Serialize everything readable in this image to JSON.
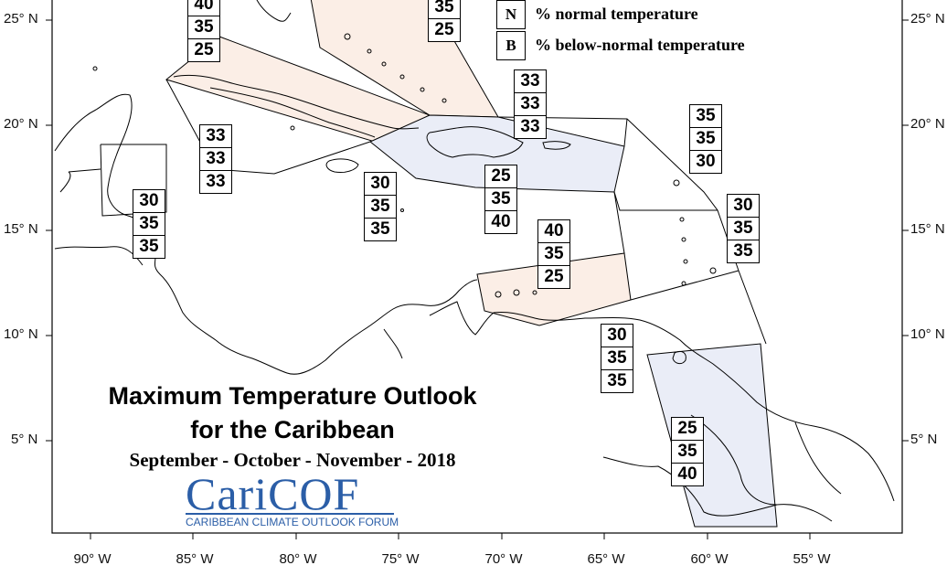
{
  "map": {
    "title_line1": "Maximum Temperature Outlook",
    "title_line2": "for the Caribbean",
    "subtitle": "September - October - November - 2018",
    "logo": {
      "name": "CariCOF",
      "tagline": "CARIBBEAN CLIMATE OUTLOOK FORUM",
      "color": "#2b5ea7"
    },
    "legend": [
      {
        "key": "N",
        "text": "% normal temperature"
      },
      {
        "key": "B",
        "text": "% below-normal temperature"
      }
    ],
    "lat_labels": [
      "25° N",
      "20° N",
      "15° N",
      "10° N",
      "5° N"
    ],
    "lon_labels": [
      "90° W",
      "85° W",
      "80° W",
      "75° W",
      "70° W",
      "65° W",
      "60° W",
      "55° W"
    ],
    "colors": {
      "above_shade": "#fbeee6",
      "below_shade": "#eaedf7",
      "outline": "#000000"
    },
    "regions": [
      {
        "name": "northwest-top",
        "values": [
          "40",
          "35",
          "25"
        ]
      },
      {
        "name": "bahamas",
        "values": [
          "35",
          "25"
        ]
      },
      {
        "name": "turks-caicos",
        "values": [
          "33",
          "33",
          "33"
        ]
      },
      {
        "name": "west-caribbean",
        "values": [
          "33",
          "33",
          "33"
        ]
      },
      {
        "name": "belize",
        "values": [
          "30",
          "35",
          "35"
        ]
      },
      {
        "name": "jamaica",
        "values": [
          "30",
          "35",
          "35"
        ]
      },
      {
        "name": "hispaniola",
        "values": [
          "25",
          "35",
          "40"
        ]
      },
      {
        "name": "leeward-islands",
        "values": [
          "35",
          "35",
          "30"
        ]
      },
      {
        "name": "windward-islands",
        "values": [
          "30",
          "35",
          "35"
        ]
      },
      {
        "name": "abc-islands",
        "values": [
          "40",
          "35",
          "25"
        ]
      },
      {
        "name": "trinidad",
        "values": [
          "30",
          "35",
          "35"
        ]
      },
      {
        "name": "guianas",
        "values": [
          "25",
          "35",
          "40"
        ]
      }
    ]
  }
}
